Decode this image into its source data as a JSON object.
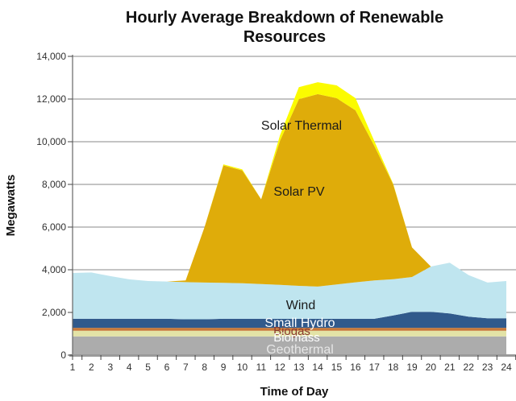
{
  "chart_data": {
    "type": "area",
    "stacked": true,
    "title": "Hourly Average Breakdown of Renewable Resources",
    "xlabel": "Time of Day",
    "ylabel": "Megawatts",
    "x": [
      1,
      2,
      3,
      4,
      5,
      6,
      7,
      8,
      9,
      10,
      11,
      12,
      13,
      14,
      15,
      16,
      17,
      18,
      19,
      20,
      21,
      22,
      23,
      24
    ],
    "ylim": [
      0,
      14000
    ],
    "ytick_labels": [
      "0",
      "2,000",
      "4,000",
      "6,000",
      "8,000",
      "10,000",
      "12,000",
      "14,000"
    ],
    "grid": true,
    "legend_position": "inline-labels",
    "series": [
      {
        "name": "Geothermal",
        "color": "#ACACAC",
        "label_color": "#E6E6E6",
        "values": [
          880,
          880,
          880,
          880,
          880,
          880,
          880,
          880,
          880,
          880,
          880,
          880,
          880,
          880,
          880,
          880,
          880,
          880,
          880,
          880,
          880,
          880,
          880,
          880
        ]
      },
      {
        "name": "Biomass",
        "color": "#E3E3A6",
        "label_color": "#FFFFFF",
        "values": [
          260,
          260,
          260,
          260,
          260,
          260,
          260,
          260,
          260,
          260,
          260,
          260,
          260,
          260,
          260,
          260,
          260,
          260,
          260,
          260,
          260,
          260,
          260,
          260
        ]
      },
      {
        "name": "Biogas",
        "color": "#C8793A",
        "label_color": "#8B3A2E",
        "values": [
          140,
          140,
          140,
          140,
          140,
          140,
          140,
          140,
          140,
          140,
          140,
          140,
          140,
          140,
          140,
          140,
          140,
          140,
          140,
          140,
          140,
          140,
          140,
          140
        ]
      },
      {
        "name": "Small Hydro",
        "color": "#315A8C",
        "label_color": "#FFFFFF",
        "values": [
          420,
          420,
          420,
          420,
          420,
          420,
          400,
          400,
          420,
          420,
          420,
          420,
          420,
          420,
          420,
          420,
          420,
          580,
          750,
          750,
          670,
          520,
          450,
          450
        ]
      },
      {
        "name": "Wind",
        "color": "#BFE5EF",
        "label_color": "#1A1A1A",
        "values": [
          2150,
          2170,
          2000,
          1850,
          1770,
          1750,
          1740,
          1720,
          1690,
          1670,
          1630,
          1590,
          1545,
          1510,
          1610,
          1710,
          1800,
          1700,
          1630,
          2120,
          2380,
          1950,
          1670,
          1740
        ]
      },
      {
        "name": "Solar PV",
        "color": "#DFAC0A",
        "label_color": "#1A1A1A",
        "values": [
          0,
          0,
          0,
          0,
          0,
          0,
          80,
          2600,
          5500,
          5280,
          3970,
          6760,
          8750,
          9020,
          8730,
          8060,
          6300,
          4440,
          1390,
          0,
          0,
          0,
          0,
          0
        ]
      },
      {
        "name": "Solar Thermal",
        "color": "#FBFB00",
        "label_color": "#1A1A1A",
        "values": [
          0,
          0,
          0,
          0,
          0,
          0,
          0,
          0,
          50,
          50,
          0,
          250,
          560,
          560,
          600,
          570,
          230,
          30,
          0,
          0,
          0,
          0,
          0,
          0
        ]
      }
    ]
  }
}
